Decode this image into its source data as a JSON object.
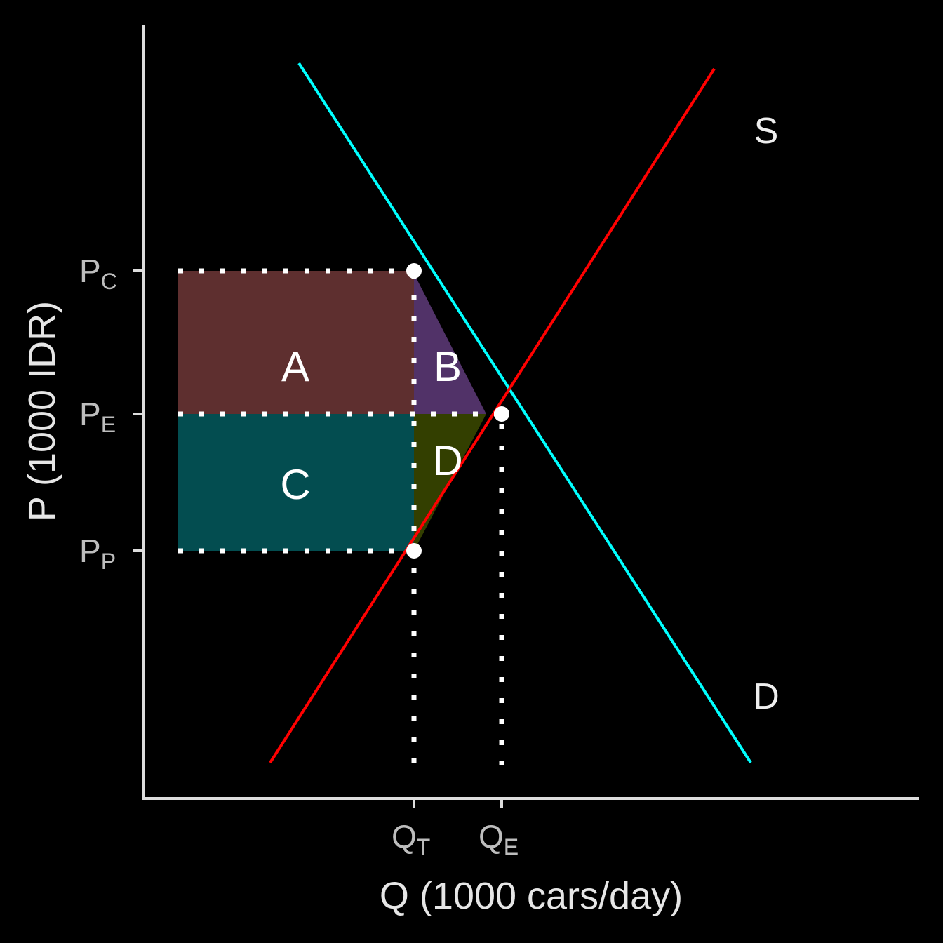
{
  "axes": {
    "y_label": "P (1000 IDR)",
    "x_label": "Q (1000 cars/day)",
    "y_ticks": [
      {
        "main": "P",
        "sub": "C"
      },
      {
        "main": "P",
        "sub": "E"
      },
      {
        "main": "P",
        "sub": "P"
      }
    ],
    "x_ticks": [
      {
        "main": "Q",
        "sub": "T"
      },
      {
        "main": "Q",
        "sub": "E"
      }
    ]
  },
  "regions": [
    "A",
    "B",
    "C",
    "D"
  ],
  "curves": [
    {
      "label": "S"
    },
    {
      "label": "D"
    }
  ]
}
